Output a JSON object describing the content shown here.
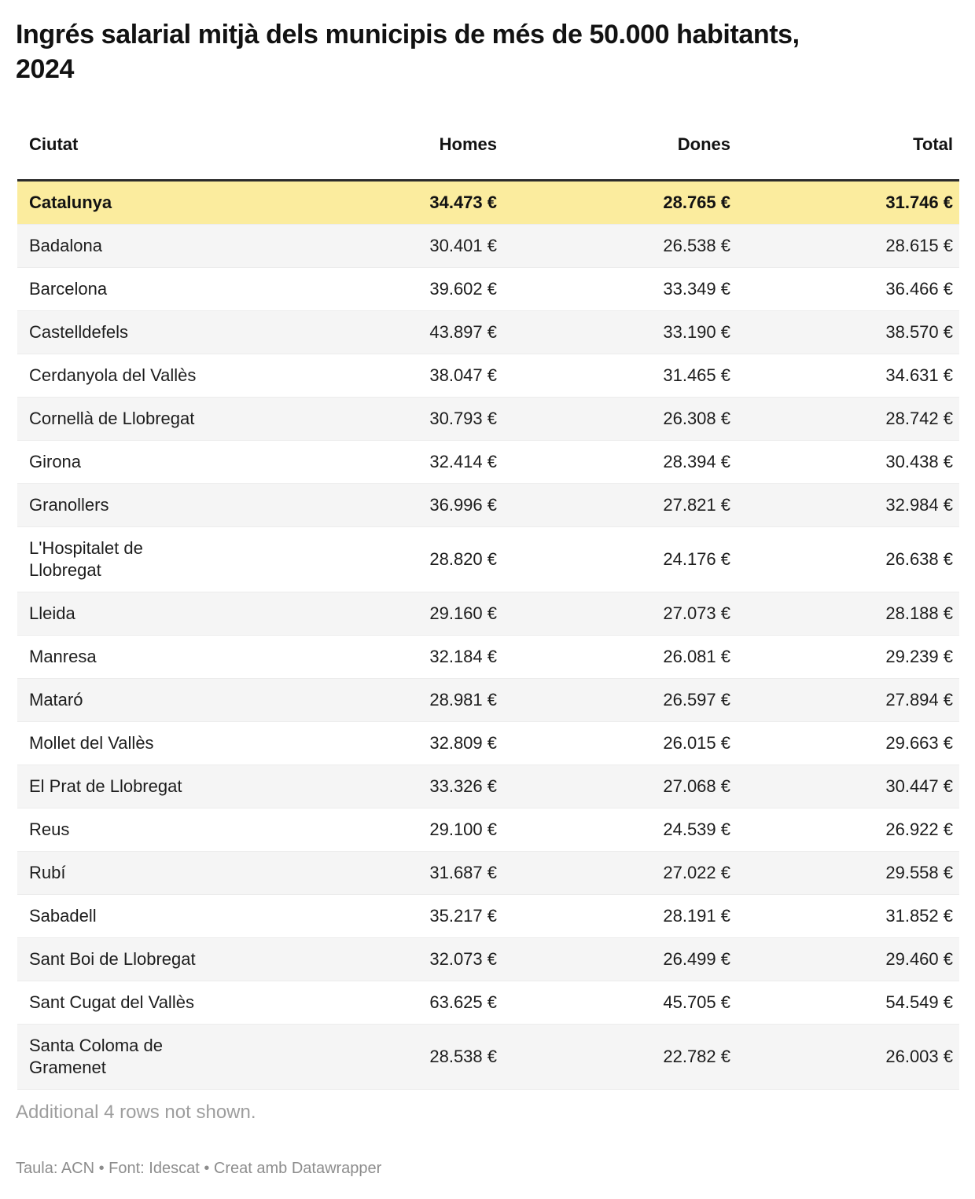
{
  "colors": {
    "highlight_row_bg": "#fbec9e",
    "stripe_row_bg": "#f5f5f5",
    "header_border": "#2b2b2b",
    "row_divider": "#ececec",
    "body_text": "#1d1d1d",
    "note_text": "#9e9e9e",
    "footer_text": "#8d8d8d"
  },
  "chart_data": {
    "type": "table",
    "title": "Ingrés salarial mitjà dels municipis de més de 50.000 habitants, 2024",
    "columns": [
      "Ciutat",
      "Homes",
      "Dones",
      "Total"
    ],
    "highlighted_row": "Catalunya",
    "rows": [
      {
        "ciutat": "Catalunya",
        "homes": "34.473 €",
        "dones": "28.765 €",
        "total": "31.746 €",
        "highlight": true
      },
      {
        "ciutat": "Badalona",
        "homes": "30.401 €",
        "dones": "26.538 €",
        "total": "28.615 €",
        "highlight": false
      },
      {
        "ciutat": "Barcelona",
        "homes": "39.602 €",
        "dones": "33.349 €",
        "total": "36.466 €",
        "highlight": false
      },
      {
        "ciutat": "Castelldefels",
        "homes": "43.897 €",
        "dones": "33.190 €",
        "total": "38.570 €",
        "highlight": false
      },
      {
        "ciutat": "Cerdanyola del Vallès",
        "homes": "38.047 €",
        "dones": "31.465 €",
        "total": "34.631 €",
        "highlight": false
      },
      {
        "ciutat": "Cornellà de Llobregat",
        "homes": "30.793 €",
        "dones": "26.308 €",
        "total": "28.742 €",
        "highlight": false
      },
      {
        "ciutat": "Girona",
        "homes": "32.414 €",
        "dones": "28.394 €",
        "total": "30.438 €",
        "highlight": false
      },
      {
        "ciutat": "Granollers",
        "homes": "36.996 €",
        "dones": "27.821 €",
        "total": "32.984 €",
        "highlight": false
      },
      {
        "ciutat": "L'Hospitalet de Llobregat",
        "homes": "28.820 €",
        "dones": "24.176 €",
        "total": "26.638 €",
        "highlight": false
      },
      {
        "ciutat": "Lleida",
        "homes": "29.160 €",
        "dones": "27.073 €",
        "total": "28.188 €",
        "highlight": false
      },
      {
        "ciutat": "Manresa",
        "homes": "32.184 €",
        "dones": "26.081 €",
        "total": "29.239 €",
        "highlight": false
      },
      {
        "ciutat": "Mataró",
        "homes": "28.981 €",
        "dones": "26.597 €",
        "total": "27.894 €",
        "highlight": false
      },
      {
        "ciutat": "Mollet del Vallès",
        "homes": "32.809 €",
        "dones": "26.015 €",
        "total": "29.663 €",
        "highlight": false
      },
      {
        "ciutat": "El Prat de Llobregat",
        "homes": "33.326 €",
        "dones": "27.068 €",
        "total": "30.447 €",
        "highlight": false
      },
      {
        "ciutat": "Reus",
        "homes": "29.100 €",
        "dones": "24.539 €",
        "total": "26.922 €",
        "highlight": false
      },
      {
        "ciutat": "Rubí",
        "homes": "31.687 €",
        "dones": "27.022 €",
        "total": "29.558 €",
        "highlight": false
      },
      {
        "ciutat": "Sabadell",
        "homes": "35.217 €",
        "dones": "28.191 €",
        "total": "31.852 €",
        "highlight": false
      },
      {
        "ciutat": "Sant Boi de Llobregat",
        "homes": "32.073 €",
        "dones": "26.499 €",
        "total": "29.460 €",
        "highlight": false
      },
      {
        "ciutat": "Sant Cugat del Vallès",
        "homes": "63.625 €",
        "dones": "45.705 €",
        "total": "54.549 €",
        "highlight": false
      },
      {
        "ciutat": "Santa Coloma de Gramenet",
        "homes": "28.538 €",
        "dones": "22.782 €",
        "total": "26.003 €",
        "highlight": false
      }
    ],
    "note": "Additional 4 rows not shown.",
    "footer": "Taula: ACN • Font: Idescat • Creat amb Datawrapper"
  }
}
